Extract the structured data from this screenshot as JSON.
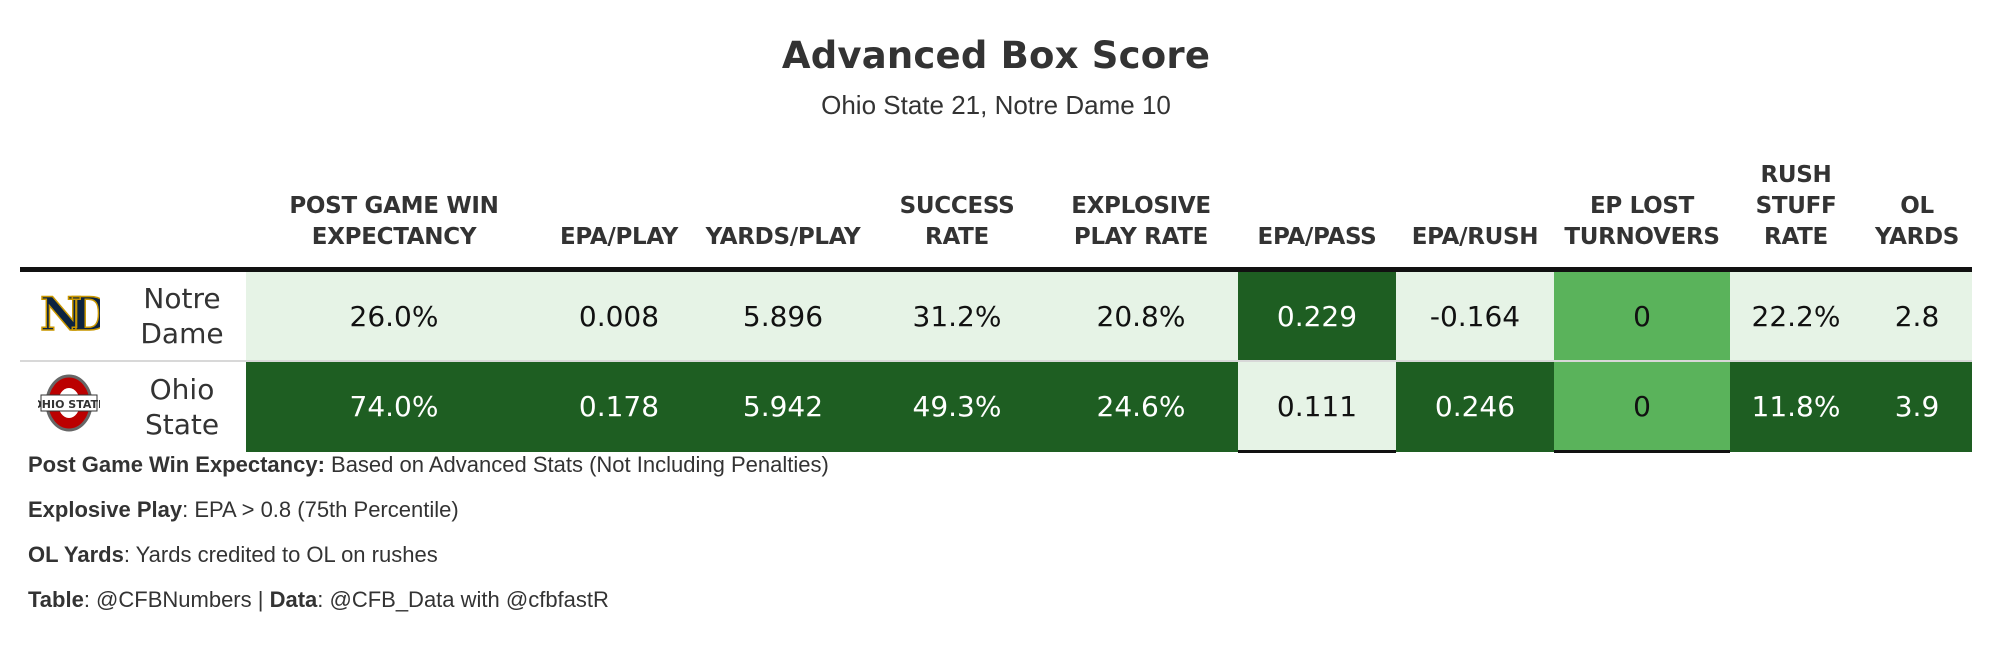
{
  "title": "Advanced Box Score",
  "subtitle": "Ohio State 21, Notre Dame 10",
  "colors": {
    "dark_green": "#1e5e22",
    "light_green": "#e6f3e6",
    "mid_green": "#5ab35b",
    "text_dark": "#111111",
    "text_light": "#ffffff",
    "nd_navy": "#0c2340",
    "nd_gold": "#c99700",
    "osu_scarlet": "#bb0000"
  },
  "chart_data": {
    "type": "table",
    "title": "Advanced Box Score",
    "subtitle": "Ohio State 21, Notre Dame 10",
    "columns": [
      "POST GAME WIN EXPECTANCY",
      "EPA/PLAY",
      "YARDS/PLAY",
      "SUCCESS RATE",
      "EXPLOSIVE PLAY RATE",
      "EPA/PASS",
      "EPA/RUSH",
      "EP LOST TURNOVERS",
      "RUSH STUFF RATE",
      "OL YARDS"
    ],
    "rows": [
      {
        "team": "Notre Dame",
        "logo": "notre-dame-logo",
        "values": [
          "26.0%",
          "0.008",
          "5.896",
          "31.2%",
          "20.8%",
          "0.229",
          "-0.164",
          "0",
          "22.2%",
          "2.8"
        ],
        "fills": [
          "light_green",
          "light_green",
          "light_green",
          "light_green",
          "light_green",
          "dark_green",
          "light_green",
          "mid_green",
          "light_green",
          "light_green"
        ]
      },
      {
        "team": "Ohio State",
        "logo": "ohio-state-logo",
        "values": [
          "74.0%",
          "0.178",
          "5.942",
          "49.3%",
          "24.6%",
          "0.111",
          "0.246",
          "0",
          "11.8%",
          "3.9"
        ],
        "fills": [
          "dark_green",
          "dark_green",
          "dark_green",
          "dark_green",
          "dark_green",
          "light_green",
          "dark_green",
          "mid_green",
          "dark_green",
          "dark_green"
        ]
      }
    ]
  },
  "footer": {
    "notes": [
      {
        "label": "Post Game Win Expectancy:",
        "text": " Based on Advanced Stats (Not Including Penalties)"
      },
      {
        "label": "Explosive Play",
        "text": ": EPA > 0.8 (75th Percentile)"
      },
      {
        "label": "OL Yards",
        "text": ": Yards credited to OL on rushes"
      }
    ],
    "credit": {
      "label1": "Table",
      "text1": ": @CFBNumbers | ",
      "label2": "Data",
      "text2": ": @CFB_Data with @cfbfastR"
    }
  }
}
